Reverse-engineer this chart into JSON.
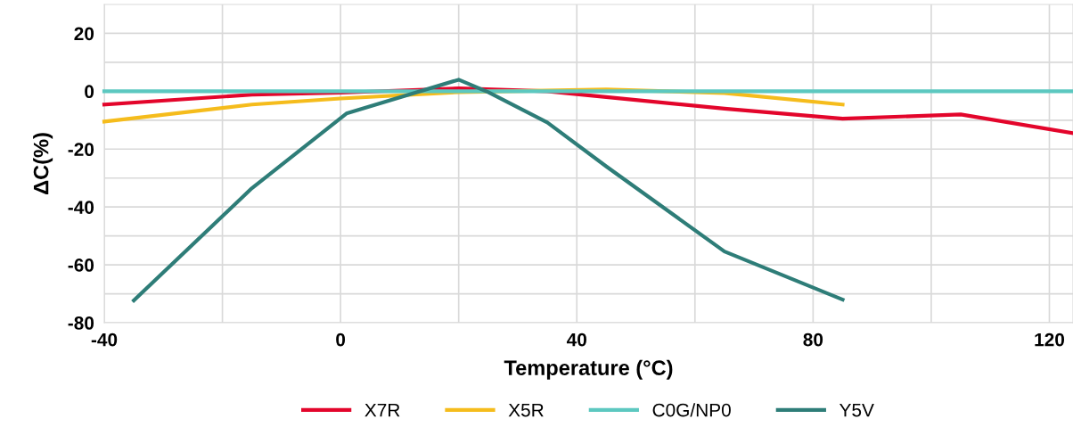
{
  "chart_data": {
    "type": "line",
    "xlabel": "Temperature (°C)",
    "ylabel": "ΔC(%)",
    "xlim": [
      -40,
      124
    ],
    "ylim": [
      -80,
      30
    ],
    "xticks": [
      -40,
      {
        "value": -20,
        "label": null
      },
      0,
      {
        "value": 20,
        "label": null
      },
      40,
      {
        "value": 60,
        "label": null
      },
      80,
      {
        "value": 100,
        "label": null
      },
      120
    ],
    "yticks": [
      -80,
      {
        "value": -70,
        "label": null
      },
      -60,
      {
        "value": -50,
        "label": null
      },
      -40,
      {
        "value": -30,
        "label": null
      },
      -20,
      {
        "value": -10,
        "label": null
      },
      0,
      {
        "value": 10,
        "label": null
      },
      20
    ],
    "grid": true,
    "legend": "bottom",
    "marker": "none",
    "line_style": "solid",
    "series": [
      {
        "name": "X7R",
        "color": "#e3052b",
        "x": [
          -40,
          -15,
          0,
          20,
          35,
          65,
          85,
          105,
          124
        ],
        "values": [
          -4.6,
          -1.2,
          -0.5,
          1,
          0,
          -6,
          -9.5,
          -8,
          -14.5
        ]
      },
      {
        "name": "X5R",
        "color": "#f5bc1c",
        "x": [
          -40,
          -15,
          0,
          20,
          45,
          65,
          85
        ],
        "values": [
          -10.5,
          -4.6,
          -2.5,
          -0.3,
          0.6,
          -0.6,
          -4.6
        ]
      },
      {
        "name": "C0G/NP0",
        "color": "#5cc8c0",
        "x": [
          -40,
          124
        ],
        "values": [
          0,
          0
        ]
      },
      {
        "name": "Y5V",
        "color": "#2e7d78",
        "x": [
          -35,
          -15,
          1,
          20,
          25,
          35,
          45,
          65,
          85
        ],
        "values": [
          -72.3,
          -33.5,
          -7.7,
          4,
          -0.3,
          -10.8,
          -26,
          -55.4,
          -72
        ]
      }
    ]
  }
}
